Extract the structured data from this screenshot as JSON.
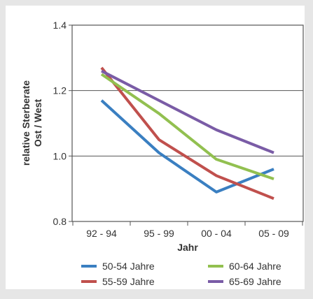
{
  "chart_data": {
    "type": "line",
    "categories": [
      "92 - 94",
      "95 - 99",
      "00 - 04",
      "05 - 09"
    ],
    "xlabel": "Jahr",
    "ylabel_lines": [
      "relative Sterberate",
      "Ost / West"
    ],
    "ylim": [
      0.8,
      1.4
    ],
    "yticks": [
      "0.8",
      "1.0",
      "1.2",
      "1.4"
    ],
    "grid": true,
    "legend_position": "bottom",
    "series": [
      {
        "name": "50-54 Jahre",
        "color": "#3a7fc1",
        "values": [
          1.17,
          1.01,
          0.89,
          0.96
        ]
      },
      {
        "name": "55-59 Jahre",
        "color": "#c0504d",
        "values": [
          1.27,
          1.05,
          0.94,
          0.87
        ]
      },
      {
        "name": "60-64 Jahre",
        "color": "#92c050",
        "values": [
          1.25,
          1.13,
          0.99,
          0.93
        ]
      },
      {
        "name": "65-69 Jahre",
        "color": "#7a5ca6",
        "values": [
          1.26,
          1.17,
          1.08,
          1.01
        ]
      }
    ]
  }
}
